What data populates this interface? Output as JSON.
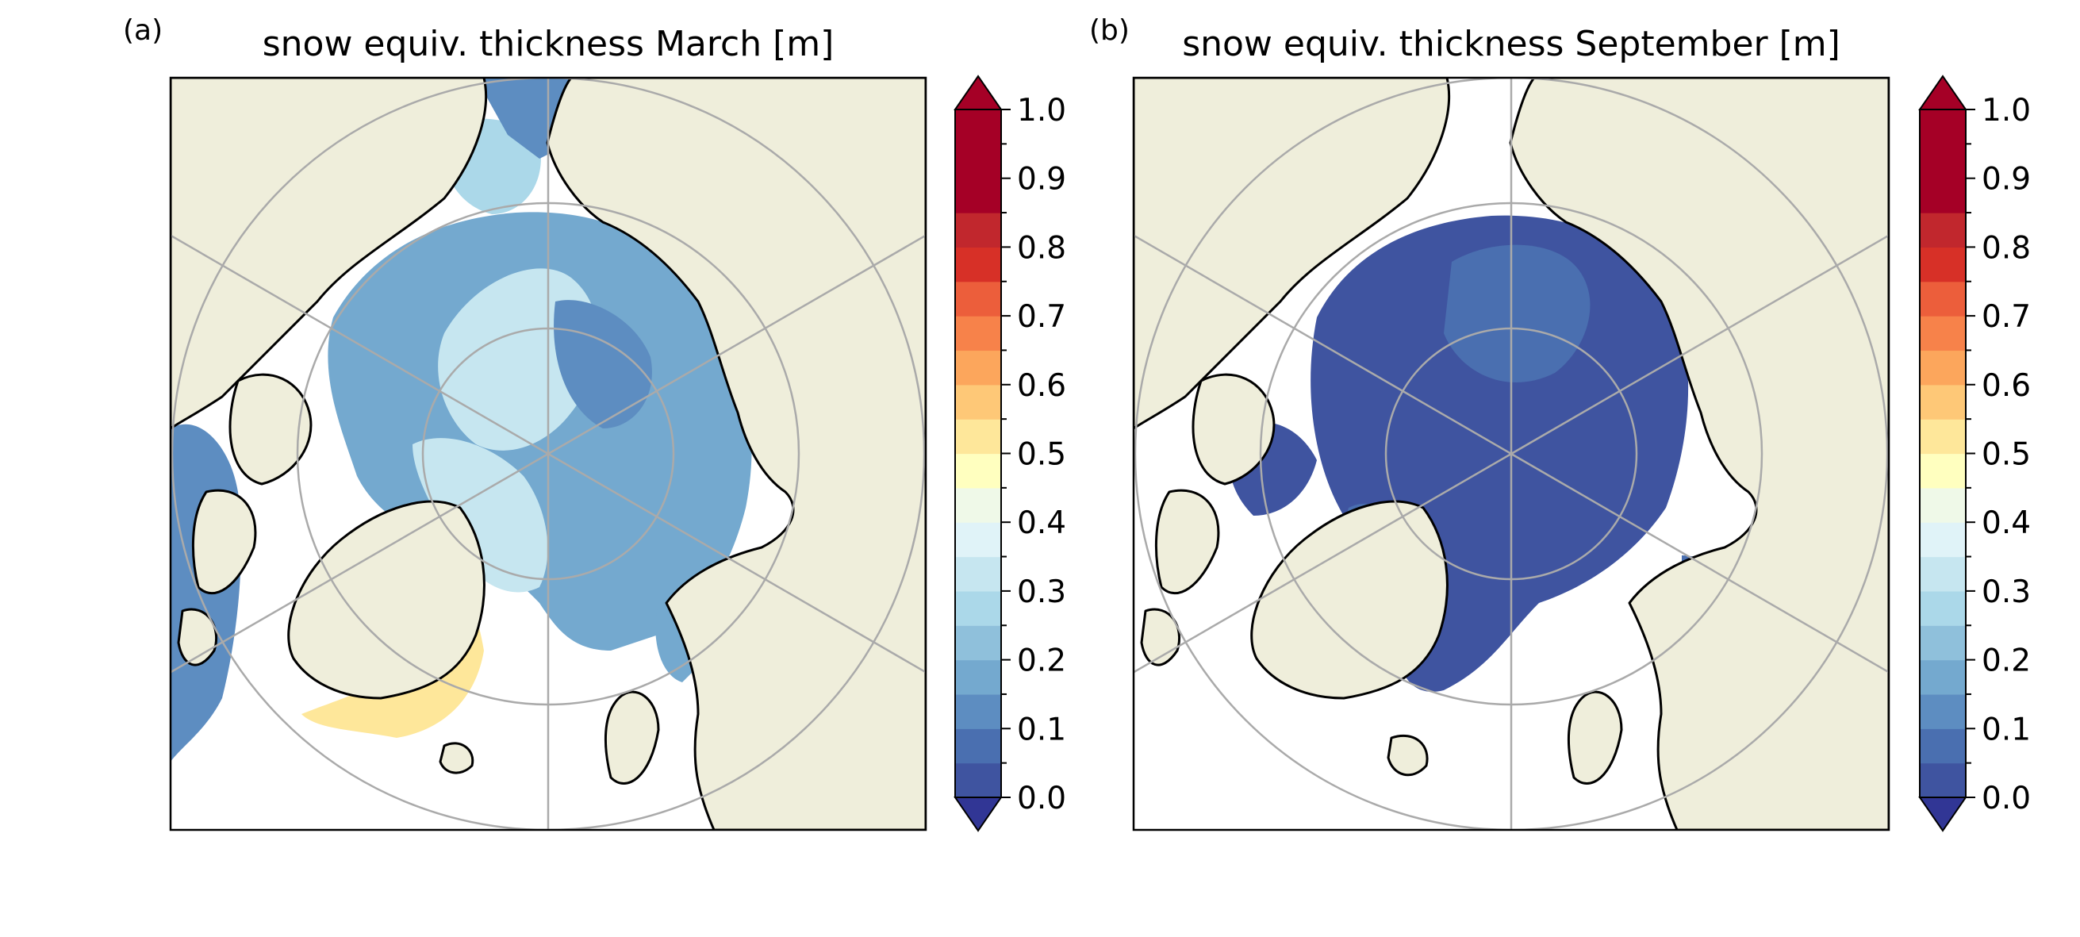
{
  "colors": {
    "land": "#efeedb",
    "ocean": "#ffffff",
    "coast": "#000000",
    "graticule": "#aaaaaa",
    "frame": "#000000",
    "colormap": [
      "#313695",
      "#3f54a0",
      "#4a6fb0",
      "#5d8dc1",
      "#74a9cf",
      "#8fc0db",
      "#abd8e9",
      "#c6e6f0",
      "#e0f3f8",
      "#eff9e8",
      "#ffffbf",
      "#fee79a",
      "#fec877",
      "#fca65c",
      "#f7824a",
      "#ec5e3b",
      "#d73027",
      "#c1272d",
      "#a50026"
    ]
  },
  "panels": [
    {
      "label": "(a)",
      "title": "snow equiv. thickness March [m]",
      "variable": "snow equivalent thickness",
      "month": "March",
      "units": "m",
      "projection": "north polar stereographic",
      "colorbar": {
        "ticks": [
          "0.0",
          "0.1",
          "0.2",
          "0.3",
          "0.4",
          "0.5",
          "0.6",
          "0.7",
          "0.8",
          "0.9",
          "1.0"
        ],
        "min": 0.0,
        "max": 1.0,
        "step": 0.05,
        "extend": "both"
      }
    },
    {
      "label": "(b)",
      "title": "snow equiv. thickness September [m]",
      "variable": "snow equivalent thickness",
      "month": "September",
      "units": "m",
      "projection": "north polar stereographic",
      "colorbar": {
        "ticks": [
          "0.0",
          "0.1",
          "0.2",
          "0.3",
          "0.4",
          "0.5",
          "0.6",
          "0.7",
          "0.8",
          "0.9",
          "1.0"
        ],
        "min": 0.0,
        "max": 1.0,
        "step": 0.05,
        "extend": "both"
      }
    }
  ]
}
